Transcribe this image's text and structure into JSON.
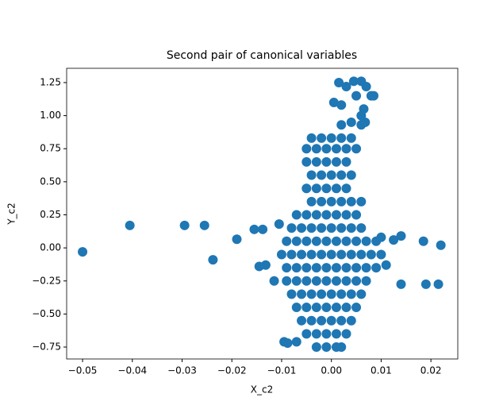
{
  "chart_data": {
    "type": "scatter",
    "title": "Second pair of canonical variables",
    "x_label": "X_c2",
    "y_label": "Y_c2",
    "color": "#1f77b4",
    "xlim": [
      -0.0532,
      0.0254
    ],
    "ylim": [
      -0.84,
      1.358
    ],
    "xticks": [
      {
        "value": -0.05,
        "label": "−0.05"
      },
      {
        "value": -0.04,
        "label": "−0.04"
      },
      {
        "value": -0.03,
        "label": "−0.03"
      },
      {
        "value": -0.02,
        "label": "−0.02"
      },
      {
        "value": -0.01,
        "label": "−0.01"
      },
      {
        "value": 0,
        "label": "0.00"
      },
      {
        "value": 0.01,
        "label": "0.01"
      },
      {
        "value": 0.02,
        "label": "0.02"
      }
    ],
    "yticks": [
      {
        "value": -0.75,
        "label": "−0.75"
      },
      {
        "value": -0.5,
        "label": "−0.50"
      },
      {
        "value": -0.25,
        "label": "−0.25"
      },
      {
        "value": 0,
        "label": "0.00"
      },
      {
        "value": 0.25,
        "label": "0.25"
      },
      {
        "value": 0.5,
        "label": "0.50"
      },
      {
        "value": 0.75,
        "label": "0.75"
      },
      {
        "value": 1,
        "label": "1.00"
      },
      {
        "value": 1.25,
        "label": "1.25"
      }
    ],
    "x": [
      -0.003,
      -0.001,
      0.001,
      0.002,
      -0.005,
      -0.003,
      -0.001,
      0.001,
      0.003,
      -0.006,
      -0.004,
      -0.002,
      0,
      0.002,
      0.004,
      -0.007,
      -0.005,
      -0.003,
      -0.001,
      0.001,
      0.003,
      0.005,
      -0.008,
      -0.006,
      -0.004,
      -0.002,
      0,
      0.002,
      0.004,
      0.006,
      -0.009,
      -0.007,
      -0.005,
      -0.003,
      -0.001,
      0.001,
      0.003,
      0.005,
      0.007,
      -0.009,
      -0.007,
      -0.005,
      -0.003,
      -0.001,
      0.001,
      0.003,
      0.005,
      0.007,
      0.009,
      -0.01,
      -0.008,
      -0.006,
      -0.004,
      -0.002,
      0,
      0.002,
      0.004,
      0.006,
      0.008,
      0.01,
      -0.009,
      -0.007,
      -0.005,
      -0.003,
      -0.001,
      0.001,
      0.003,
      0.005,
      0.007,
      0.009,
      -0.008,
      -0.006,
      -0.004,
      -0.002,
      0,
      0.002,
      0.004,
      0.006,
      -0.007,
      -0.005,
      -0.003,
      -0.001,
      0.001,
      0.003,
      0.005,
      -0.004,
      -0.002,
      0,
      0.002,
      0.004,
      0.006,
      -0.005,
      -0.003,
      -0.001,
      0.001,
      0.003,
      -0.004,
      -0.002,
      0,
      0.002,
      0.004,
      -0.005,
      -0.003,
      -0.001,
      0.001,
      0.003,
      -0.005,
      -0.003,
      -0.001,
      0.001,
      0.003,
      0.005,
      -0.004,
      -0.002,
      0,
      0.002,
      0.004,
      -0.05,
      -0.0405,
      -0.0295,
      -0.0255,
      -0.0238,
      -0.019,
      -0.0155,
      -0.0138,
      -0.0145,
      -0.0132,
      -0.0115,
      -0.0105,
      -0.0095,
      -0.0088,
      -0.007,
      0.0185,
      0.019,
      0.0215,
      0.022,
      0.014,
      0.014,
      0.0125,
      0.011,
      0.01,
      0.0015,
      0.003,
      0.0045,
      0.006,
      0.007,
      0.008,
      0.0085,
      0.0005,
      0.002,
      0.005,
      0.0065,
      0.002,
      0.004,
      0.006,
      0.0068,
      0.006
    ],
    "y": [
      -0.75,
      -0.75,
      -0.75,
      -0.75,
      -0.65,
      -0.65,
      -0.65,
      -0.65,
      -0.65,
      -0.55,
      -0.55,
      -0.55,
      -0.55,
      -0.55,
      -0.55,
      -0.45,
      -0.45,
      -0.45,
      -0.45,
      -0.45,
      -0.45,
      -0.45,
      -0.35,
      -0.35,
      -0.35,
      -0.35,
      -0.35,
      -0.35,
      -0.35,
      -0.35,
      -0.25,
      -0.25,
      -0.25,
      -0.25,
      -0.25,
      -0.25,
      -0.25,
      -0.25,
      -0.25,
      -0.15,
      -0.15,
      -0.15,
      -0.15,
      -0.15,
      -0.15,
      -0.15,
      -0.15,
      -0.15,
      -0.15,
      -0.05,
      -0.05,
      -0.05,
      -0.05,
      -0.05,
      -0.05,
      -0.05,
      -0.05,
      -0.05,
      -0.05,
      -0.05,
      0.05,
      0.05,
      0.05,
      0.05,
      0.05,
      0.05,
      0.05,
      0.05,
      0.05,
      0.05,
      0.15,
      0.15,
      0.15,
      0.15,
      0.15,
      0.15,
      0.15,
      0.15,
      0.25,
      0.25,
      0.25,
      0.25,
      0.25,
      0.25,
      0.25,
      0.35,
      0.35,
      0.35,
      0.35,
      0.35,
      0.35,
      0.45,
      0.45,
      0.45,
      0.45,
      0.45,
      0.55,
      0.55,
      0.55,
      0.55,
      0.55,
      0.65,
      0.65,
      0.65,
      0.65,
      0.65,
      0.75,
      0.75,
      0.75,
      0.75,
      0.75,
      0.75,
      0.83,
      0.83,
      0.83,
      0.83,
      0.83,
      -0.03,
      0.17,
      0.17,
      0.17,
      -0.09,
      0.065,
      0.14,
      0.14,
      -0.14,
      -0.13,
      -0.25,
      0.18,
      -0.71,
      -0.72,
      -0.71,
      0.05,
      -0.275,
      -0.275,
      0.02,
      -0.275,
      0.09,
      0.06,
      -0.13,
      0.08,
      1.25,
      1.22,
      1.26,
      1.26,
      1.22,
      1.15,
      1.15,
      1.1,
      1.08,
      1.15,
      1.05,
      0.93,
      0.95,
      0.93,
      0.95,
      1.0
    ]
  }
}
